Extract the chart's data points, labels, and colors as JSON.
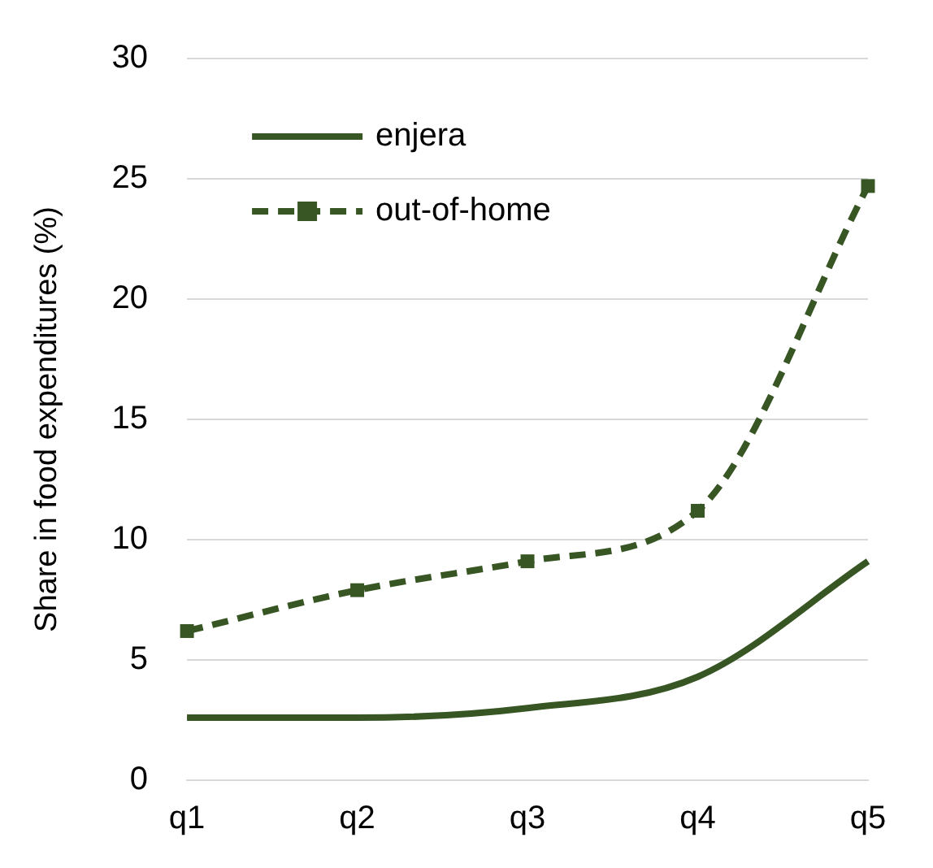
{
  "chart_data": {
    "type": "line",
    "ylabel": "Share in food expenditures (%)",
    "categories": [
      "q1",
      "q2",
      "q3",
      "q4",
      "q5"
    ],
    "series": [
      {
        "name": "enjera",
        "color": "#375623",
        "values": [
          2.6,
          2.6,
          3.0,
          4.3,
          9.1
        ],
        "marker": "none",
        "line_style": "solid"
      },
      {
        "name": "out-of-home",
        "color": "#375623",
        "values": [
          6.2,
          7.9,
          9.1,
          11.2,
          24.7
        ],
        "marker": "square",
        "line_style": "dashed"
      }
    ],
    "ylim": [
      0,
      30
    ],
    "yticks": [
      0,
      5,
      10,
      15,
      20,
      25,
      30
    ],
    "grid": "y",
    "legend": "top left"
  }
}
